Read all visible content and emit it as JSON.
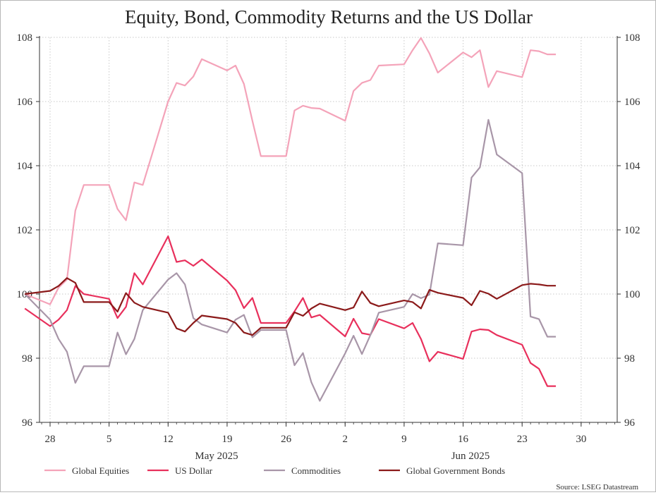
{
  "chart_data": {
    "type": "line",
    "title": "Equity, Bond, Commodity Returns and the US Dollar",
    "source": "Source: LSEG Datastream",
    "ylim": [
      96,
      108
    ],
    "y_ticks": [
      "96",
      "98",
      "100",
      "102",
      "104",
      "106",
      "108"
    ],
    "x_tick_labels": [
      "28",
      "5",
      "12",
      "19",
      "26",
      "2",
      "9",
      "16",
      "23",
      "30"
    ],
    "x_month_labels": [
      "May 2025",
      "Jun 2025"
    ],
    "x": [
      "2025-04-25",
      "2025-04-28",
      "2025-04-29",
      "2025-04-30",
      "2025-05-01",
      "2025-05-02",
      "2025-05-05",
      "2025-05-06",
      "2025-05-07",
      "2025-05-08",
      "2025-05-09",
      "2025-05-12",
      "2025-05-13",
      "2025-05-14",
      "2025-05-15",
      "2025-05-16",
      "2025-05-19",
      "2025-05-20",
      "2025-05-21",
      "2025-05-22",
      "2025-05-23",
      "2025-05-26",
      "2025-05-27",
      "2025-05-28",
      "2025-05-29",
      "2025-05-30",
      "2025-06-02",
      "2025-06-03",
      "2025-06-04",
      "2025-06-05",
      "2025-06-06",
      "2025-06-09",
      "2025-06-10",
      "2025-06-11",
      "2025-06-12",
      "2025-06-13",
      "2025-06-16",
      "2025-06-17",
      "2025-06-18",
      "2025-06-19",
      "2025-06-20",
      "2025-06-23",
      "2025-06-24",
      "2025-06-25",
      "2025-06-26",
      "2025-06-27"
    ],
    "grid": true,
    "legend_position": "bottom",
    "series": [
      {
        "name": "Global Equities",
        "color": "#f4a3b9",
        "values": [
          100.0,
          99.68,
          100.2,
          100.45,
          102.6,
          103.4,
          103.4,
          102.65,
          102.3,
          103.48,
          103.4,
          106.0,
          106.58,
          106.5,
          106.78,
          107.32,
          106.97,
          107.12,
          106.55,
          105.4,
          104.3,
          104.3,
          105.72,
          105.87,
          105.8,
          105.78,
          105.4,
          106.33,
          106.58,
          106.67,
          107.12,
          107.16,
          107.6,
          107.98,
          107.5,
          106.9,
          107.53,
          107.38,
          107.6,
          106.45,
          106.95,
          106.76,
          107.6,
          107.57,
          107.47,
          107.47
        ]
      },
      {
        "name": "US Dollar",
        "color": "#e8305c",
        "values": [
          99.55,
          99.0,
          99.2,
          99.5,
          100.25,
          100.0,
          99.85,
          99.25,
          99.6,
          100.65,
          100.3,
          101.8,
          101.0,
          101.05,
          100.88,
          101.08,
          100.42,
          100.12,
          99.56,
          99.88,
          99.1,
          99.1,
          99.46,
          99.88,
          99.27,
          99.35,
          98.68,
          99.23,
          98.78,
          98.73,
          99.22,
          98.93,
          99.1,
          98.6,
          97.9,
          98.2,
          97.98,
          98.83,
          98.9,
          98.88,
          98.72,
          98.42,
          97.85,
          97.67,
          97.13,
          97.13
        ]
      },
      {
        "name": "Commodities",
        "color": "#a896a8",
        "values": [
          100.0,
          99.2,
          98.6,
          98.2,
          97.23,
          97.75,
          97.75,
          98.8,
          98.12,
          98.6,
          99.5,
          100.45,
          100.65,
          100.3,
          99.25,
          99.05,
          98.8,
          99.2,
          99.35,
          98.65,
          98.88,
          98.88,
          97.78,
          98.16,
          97.25,
          96.67,
          98.15,
          98.7,
          98.13,
          98.72,
          99.42,
          99.6,
          100.0,
          99.87,
          99.98,
          101.58,
          101.52,
          103.63,
          103.95,
          105.43,
          104.35,
          103.77,
          99.3,
          99.22,
          98.67,
          98.67
        ]
      },
      {
        "name": "Global Government Bonds",
        "color": "#8b1a1a",
        "values": [
          100.0,
          100.1,
          100.25,
          100.5,
          100.35,
          99.75,
          99.75,
          99.45,
          100.03,
          99.73,
          99.6,
          99.42,
          98.93,
          98.83,
          99.1,
          99.33,
          99.22,
          99.1,
          98.8,
          98.72,
          98.95,
          98.95,
          99.43,
          99.32,
          99.55,
          99.7,
          99.5,
          99.58,
          100.08,
          99.72,
          99.62,
          99.8,
          99.75,
          99.55,
          100.13,
          100.04,
          99.88,
          99.65,
          100.1,
          100.01,
          99.85,
          100.28,
          100.32,
          100.3,
          100.26,
          100.26
        ]
      }
    ]
  }
}
